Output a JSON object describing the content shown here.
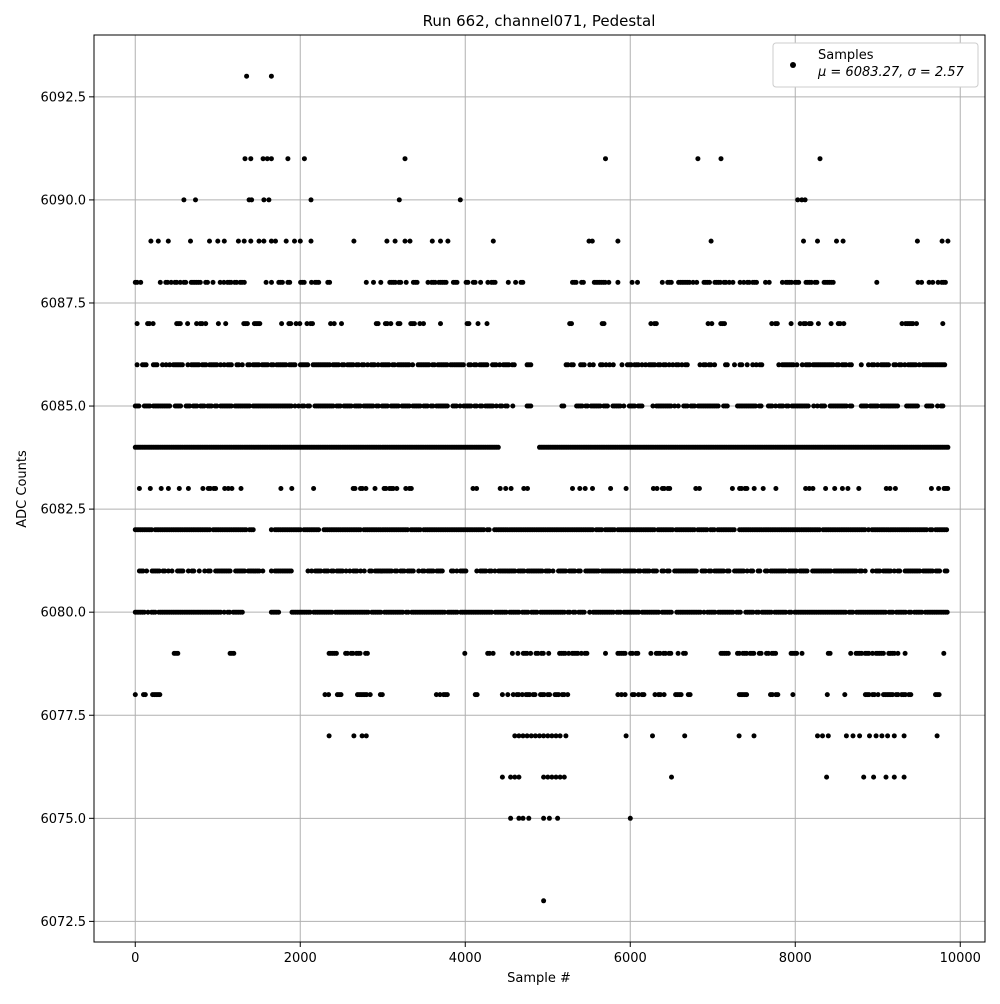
{
  "chart_data": {
    "type": "scatter",
    "title": "Run 662, channel071, Pedestal",
    "xlabel": "Sample #",
    "ylabel": "ADC Counts",
    "xlim": [
      -500,
      10300
    ],
    "ylim": [
      6072.0,
      6094.0
    ],
    "xticks": [
      0,
      2000,
      4000,
      6000,
      8000,
      10000
    ],
    "yticks": [
      6072.5,
      6075.0,
      6077.5,
      6080.0,
      6082.5,
      6085.0,
      6087.5,
      6090.0,
      6092.5
    ],
    "xtick_labels": [
      "0",
      "2000",
      "4000",
      "6000",
      "8000",
      "10000"
    ],
    "ytick_labels": [
      "6072.5",
      "6075.0",
      "6077.5",
      "6080.0",
      "6082.5",
      "6085.0",
      "6087.5",
      "6090.0",
      "6092.5"
    ],
    "grid": true,
    "legend": {
      "position": "top-right",
      "entries": [
        {
          "name": "Samples",
          "stats": "μ = 6083.27, σ = 2.57",
          "marker": "circle",
          "color": "#000000"
        }
      ]
    },
    "series": [
      {
        "name": "Samples",
        "color": "#000000",
        "marker": "circle",
        "points": [
          [
            1350,
            6093
          ],
          [
            1650,
            6093
          ],
          [
            1330,
            6091
          ],
          [
            1400,
            6091
          ],
          [
            1550,
            6091
          ],
          [
            1600,
            6091
          ],
          [
            1650,
            6091
          ],
          [
            1850,
            6091
          ],
          [
            2050,
            6091
          ],
          [
            3270,
            6091
          ],
          [
            5700,
            6091
          ],
          [
            6820,
            6091
          ],
          [
            7100,
            6091
          ],
          [
            8300,
            6091
          ],
          [
            590,
            6090
          ],
          [
            730,
            6090
          ],
          [
            1380,
            6090
          ],
          [
            1410,
            6090
          ],
          [
            1560,
            6090
          ],
          [
            1620,
            6090
          ],
          [
            2130,
            6090
          ],
          [
            3200,
            6090
          ],
          [
            3940,
            6090
          ],
          [
            8030,
            6090
          ],
          [
            8080,
            6090
          ],
          [
            8120,
            6090
          ],
          [
            190,
            6089
          ],
          [
            280,
            6089
          ],
          [
            400,
            6089
          ],
          [
            670,
            6089
          ],
          [
            900,
            6089
          ],
          [
            1000,
            6089
          ],
          [
            1080,
            6089
          ],
          [
            1250,
            6089
          ],
          [
            1320,
            6089
          ],
          [
            1400,
            6089
          ],
          [
            1500,
            6089
          ],
          [
            1560,
            6089
          ],
          [
            1650,
            6089
          ],
          [
            1700,
            6089
          ],
          [
            1830,
            6089
          ],
          [
            1930,
            6089
          ],
          [
            2000,
            6089
          ],
          [
            2130,
            6089
          ],
          [
            2650,
            6089
          ],
          [
            3050,
            6089
          ],
          [
            3150,
            6089
          ],
          [
            3270,
            6089
          ],
          [
            3330,
            6089
          ],
          [
            3600,
            6089
          ],
          [
            3700,
            6089
          ],
          [
            3790,
            6089
          ],
          [
            4340,
            6089
          ],
          [
            5500,
            6089
          ],
          [
            5540,
            6089
          ],
          [
            5850,
            6089
          ],
          [
            6980,
            6089
          ],
          [
            8100,
            6089
          ],
          [
            8270,
            6089
          ],
          [
            8500,
            6089
          ],
          [
            8580,
            6089
          ],
          [
            9480,
            6089
          ],
          [
            9780,
            6089
          ],
          [
            9850,
            6089
          ],
          [
            6000,
            6075
          ],
          [
            4550,
            6075
          ],
          [
            4650,
            6075
          ],
          [
            4700,
            6075
          ],
          [
            4770,
            6075
          ],
          [
            4950,
            6075
          ],
          [
            5020,
            6075
          ],
          [
            5120,
            6075
          ],
          [
            4950,
            6073
          ],
          [
            2350,
            6077
          ],
          [
            2650,
            6077
          ],
          [
            2750,
            6077
          ],
          [
            2800,
            6077
          ],
          [
            4600,
            6077
          ],
          [
            4650,
            6077
          ],
          [
            4700,
            6077
          ],
          [
            4750,
            6077
          ],
          [
            4800,
            6077
          ],
          [
            4850,
            6077
          ],
          [
            4900,
            6077
          ],
          [
            4950,
            6077
          ],
          [
            5000,
            6077
          ],
          [
            5050,
            6077
          ],
          [
            5100,
            6077
          ],
          [
            5150,
            6077
          ],
          [
            5220,
            6077
          ],
          [
            5950,
            6077
          ],
          [
            6270,
            6077
          ],
          [
            6660,
            6077
          ],
          [
            7320,
            6077
          ],
          [
            7500,
            6077
          ],
          [
            8270,
            6077
          ],
          [
            8330,
            6077
          ],
          [
            8400,
            6077
          ],
          [
            8620,
            6077
          ],
          [
            8700,
            6077
          ],
          [
            8780,
            6077
          ],
          [
            8900,
            6077
          ],
          [
            8980,
            6077
          ],
          [
            9050,
            6077
          ],
          [
            9120,
            6077
          ],
          [
            9200,
            6077
          ],
          [
            9320,
            6077
          ],
          [
            9720,
            6077
          ],
          [
            4450,
            6076
          ],
          [
            4550,
            6076
          ],
          [
            4600,
            6076
          ],
          [
            4650,
            6076
          ],
          [
            4950,
            6076
          ],
          [
            5000,
            6076
          ],
          [
            5050,
            6076
          ],
          [
            5100,
            6076
          ],
          [
            5150,
            6076
          ],
          [
            5200,
            6076
          ],
          [
            6500,
            6076
          ],
          [
            8380,
            6076
          ],
          [
            8830,
            6076
          ],
          [
            8950,
            6076
          ],
          [
            9100,
            6076
          ],
          [
            9200,
            6076
          ],
          [
            9320,
            6076
          ]
        ],
        "bands": [
          {
            "y": 6088,
            "ranges": [
              [
                0,
                120
              ],
              [
                150,
                1300
              ],
              [
                1300,
                2400
              ],
              [
                2800,
                4400
              ],
              [
                4500,
                4700
              ],
              [
                5000,
                5100
              ],
              [
                5300,
                5850
              ],
              [
                6000,
                6100
              ],
              [
                6300,
                7200
              ],
              [
                7200,
                7700
              ],
              [
                7800,
                8500
              ],
              [
                8900,
                9000
              ],
              [
                9400,
                9550
              ],
              [
                9600,
                9850
              ]
            ],
            "density": 0.5
          },
          {
            "y": 6087,
            "ranges": [
              [
                0,
                40
              ],
              [
                150,
                1400
              ],
              [
                1400,
                2500
              ],
              [
                2900,
                3600
              ],
              [
                3700,
                3800
              ],
              [
                4000,
                4300
              ],
              [
                5200,
                5350
              ],
              [
                5550,
                5800
              ],
              [
                6250,
                6400
              ],
              [
                6900,
                7150
              ],
              [
                7650,
                7800
              ],
              [
                7950,
                8600
              ],
              [
                9250,
                9500
              ],
              [
                9700,
                9850
              ]
            ],
            "density": 0.3
          },
          {
            "y": 6086,
            "ranges": [
              [
                0,
                2900
              ],
              [
                2900,
                4600
              ],
              [
                4750,
                4800
              ],
              [
                5200,
                5800
              ],
              [
                5900,
                7600
              ],
              [
                7800,
                8700
              ],
              [
                8800,
                9850
              ]
            ],
            "density": 0.7
          },
          {
            "y": 6085,
            "ranges": [
              [
                0,
                4600
              ],
              [
                4750,
                4800
              ],
              [
                5150,
                5200
              ],
              [
                5350,
                7200
              ],
              [
                7300,
                8700
              ],
              [
                8800,
                9850
              ]
            ],
            "density": 0.8
          },
          {
            "y": 6084,
            "ranges": [
              [
                0,
                4400
              ],
              [
                4900,
                9850
              ]
            ],
            "density": 1.0
          },
          {
            "y": 6083,
            "ranges": [
              [
                50,
                1300
              ],
              [
                1700,
                2200
              ],
              [
                2400,
                3700
              ],
              [
                4050,
                4800
              ],
              [
                5300,
                5800
              ],
              [
                5950,
                6600
              ],
              [
                6750,
                6900
              ],
              [
                7150,
                7800
              ],
              [
                7950,
                8500
              ],
              [
                8550,
                8800
              ],
              [
                8950,
                9500
              ],
              [
                9650,
                9850
              ]
            ],
            "density": 0.25
          },
          {
            "y": 6082,
            "ranges": [
              [
                0,
                1450
              ],
              [
                1650,
                9850
              ]
            ],
            "density": 0.95
          },
          {
            "y": 6081,
            "ranges": [
              [
                50,
                1550
              ],
              [
                1650,
                1900
              ],
              [
                2050,
                9850
              ]
            ],
            "density": 0.75
          },
          {
            "y": 6080,
            "ranges": [
              [
                0,
                1350
              ],
              [
                1650,
                1750
              ],
              [
                1900,
                9850
              ]
            ],
            "density": 0.85
          },
          {
            "y": 6079,
            "ranges": [
              [
                0,
                10
              ],
              [
                100,
                120
              ],
              [
                450,
                550
              ],
              [
                1150,
                1250
              ],
              [
                2350,
                2450
              ],
              [
                2550,
                2850
              ],
              [
                3750,
                3800
              ],
              [
                3950,
                4000
              ],
              [
                4250,
                4350
              ],
              [
                4550,
                5500
              ],
              [
                5700,
                5750
              ],
              [
                5850,
                6100
              ],
              [
                6250,
                6700
              ],
              [
                7100,
                7200
              ],
              [
                7300,
                7800
              ],
              [
                7950,
                8100
              ],
              [
                8400,
                8450
              ],
              [
                8650,
                9350
              ],
              [
                9800,
                9850
              ]
            ],
            "density": 0.6
          },
          {
            "y": 6078,
            "ranges": [
              [
                0,
                10
              ],
              [
                100,
                300
              ],
              [
                2300,
                2350
              ],
              [
                2450,
                2500
              ],
              [
                2650,
                2850
              ],
              [
                2950,
                3000
              ],
              [
                3650,
                3800
              ],
              [
                4100,
                4150
              ],
              [
                4450,
                5250
              ],
              [
                5850,
                6050
              ],
              [
                6100,
                6200
              ],
              [
                6300,
                6450
              ],
              [
                6550,
                6750
              ],
              [
                7300,
                7450
              ],
              [
                7700,
                7800
              ],
              [
                7950,
                8000
              ],
              [
                8300,
                8400
              ],
              [
                8600,
                8650
              ],
              [
                8850,
                9400
              ],
              [
                9700,
                9750
              ]
            ],
            "density": 0.6
          }
        ]
      }
    ]
  }
}
